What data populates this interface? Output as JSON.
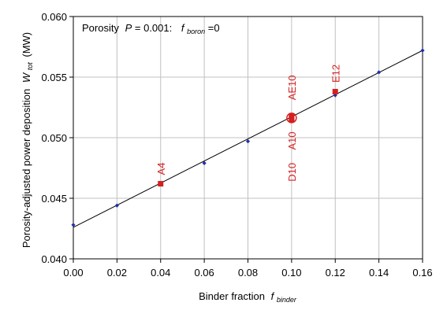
{
  "chart_data": {
    "type": "scatter",
    "title": "",
    "annotation": {
      "prefix": "Porosity",
      "p_symbol": "P",
      "p_value": " = 0.001:",
      "f_symbol": "f",
      "f_subscript": "boron",
      "f_value": " =0"
    },
    "xlabel": {
      "text": "Binder fraction",
      "symbol": "f",
      "subscript": "binder"
    },
    "ylabel": {
      "text": "Porosity-adjusted power deposition",
      "symbol": "W",
      "subscript": "tot",
      "unit": "(MW)"
    },
    "xlim": [
      0.0,
      0.16
    ],
    "ylim": [
      0.04,
      0.06
    ],
    "x_ticks": [
      "0.00",
      "0.02",
      "0.04",
      "0.06",
      "0.08",
      "0.10",
      "0.12",
      "0.14",
      "0.16"
    ],
    "y_ticks": [
      "0.040",
      "0.045",
      "0.050",
      "0.055",
      "0.060"
    ],
    "grid": true,
    "series": [
      {
        "marker": "diamond",
        "color": "#1f2fa8",
        "x": [
          0.0,
          0.02,
          0.04,
          0.06,
          0.08,
          0.1,
          0.12,
          0.14,
          0.16
        ],
        "y": [
          0.0428,
          0.0444,
          0.0462,
          0.0479,
          0.0497,
          0.0516,
          0.0535,
          0.0554,
          0.0572
        ]
      },
      {
        "marker": "square",
        "color": "#d42020",
        "points": [
          {
            "label": "A4",
            "x": 0.04,
            "y": 0.0462
          },
          {
            "label": "D10",
            "x": 0.1,
            "y": 0.0515
          },
          {
            "label": "A10",
            "x": 0.1,
            "y": 0.0516
          },
          {
            "label": "AE10",
            "x": 0.1,
            "y": 0.0518
          },
          {
            "label": "E12",
            "x": 0.12,
            "y": 0.0538
          }
        ]
      }
    ],
    "trendline": {
      "x": [
        0.0,
        0.16
      ],
      "y": [
        0.0426,
        0.0572
      ],
      "color": "#000000"
    },
    "colors": {
      "label": "#d42020",
      "grid": "#c0c0c0"
    }
  }
}
